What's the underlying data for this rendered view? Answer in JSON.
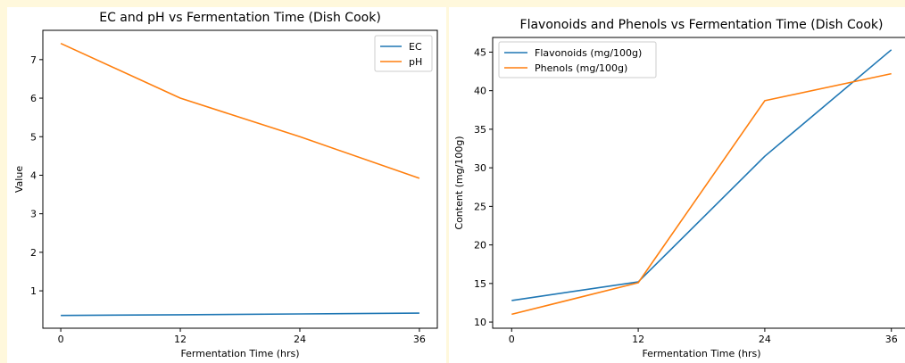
{
  "chart_data": [
    {
      "type": "line",
      "title": "EC and pH vs Fermentation Time (Dish Cook)",
      "xlabel": "Fermentation Time (hrs)",
      "ylabel": "Value",
      "x": [
        0,
        12,
        24,
        36
      ],
      "xticks": [
        "0",
        "12",
        "24",
        "36"
      ],
      "yticks": [
        "1",
        "2",
        "3",
        "4",
        "5",
        "6",
        "7"
      ],
      "xlim": [
        -1.8,
        37.8
      ],
      "ylim": [
        0.03,
        7.76
      ],
      "grid": false,
      "legend": "top-right",
      "series": [
        {
          "name": "EC",
          "values": [
            0.36,
            0.38,
            0.4,
            0.42
          ],
          "color": "#1f77b4"
        },
        {
          "name": "pH",
          "values": [
            7.42,
            6.0,
            5.0,
            3.92
          ],
          "color": "#ff7f0e"
        }
      ]
    },
    {
      "type": "line",
      "title": "Flavonoids and Phenols vs Fermentation Time (Dish Cook)",
      "xlabel": "Fermentation Time (hrs)",
      "ylabel": "Content (mg/100g)",
      "x": [
        0,
        12,
        24,
        36
      ],
      "xticks": [
        "0",
        "12",
        "24",
        "36"
      ],
      "yticks": [
        "10",
        "15",
        "20",
        "25",
        "30",
        "35",
        "40",
        "45"
      ],
      "xlim": [
        -1.8,
        37.8
      ],
      "ylim": [
        9.2,
        46.9
      ],
      "grid": false,
      "legend": "top-left",
      "series": [
        {
          "name": "Flavonoids (mg/100g)",
          "values": [
            12.8,
            15.2,
            31.5,
            45.3
          ],
          "color": "#1f77b4"
        },
        {
          "name": "Phenols (mg/100g)",
          "values": [
            11.0,
            15.1,
            38.7,
            42.2
          ],
          "color": "#ff7f0e"
        }
      ]
    }
  ]
}
